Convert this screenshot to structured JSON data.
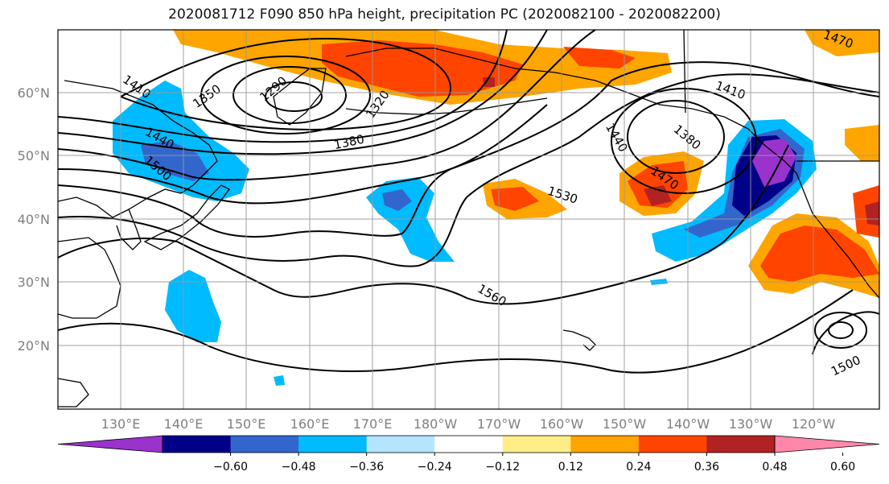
{
  "title": "2020081712 F090 850 hPa height, precipitation PC (2020082100 - 2020082200)",
  "map": {
    "lat_labels": [
      "60°N",
      "50°N",
      "40°N",
      "30°N",
      "20°N"
    ],
    "lon_labels": [
      "130°E",
      "140°E",
      "150°E",
      "160°E",
      "170°E",
      "180°W",
      "170°W",
      "160°W",
      "150°W",
      "140°W",
      "130°W",
      "120°W"
    ],
    "contour_labels": [
      "1410",
      "1350",
      "1290",
      "1320",
      "1380",
      "1440",
      "1500",
      "1410",
      "1440",
      "1380",
      "1470",
      "1530",
      "1560",
      "1500",
      "1470"
    ]
  },
  "colorbar": {
    "colors": [
      "#9933cc",
      "#000088",
      "#3366cc",
      "#00bbff",
      "#b3e5ff",
      "#ffffff",
      "#ffee88",
      "#ffa500",
      "#ff4400",
      "#b22222",
      "#ff88aa"
    ],
    "ticks": [
      "−0.60",
      "−0.48",
      "−0.36",
      "−0.24",
      "−0.12",
      "0.12",
      "0.24",
      "0.36",
      "0.48",
      "0.60"
    ]
  }
}
